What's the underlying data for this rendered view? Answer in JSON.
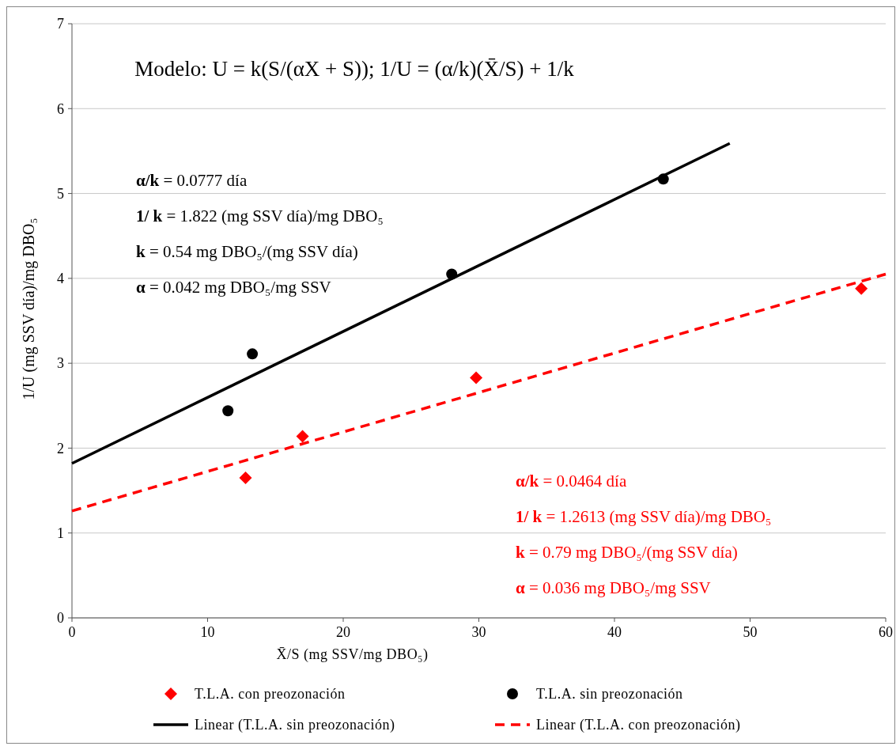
{
  "chart_data": {
    "type": "scatter",
    "xlabel": "X̄/S (mg SSV/mg DBO₅)",
    "ylabel": "1/U (mg SSV día)/mg DBO₅",
    "xlim": [
      0,
      60
    ],
    "ylim": [
      0,
      7
    ],
    "xticks": [
      0,
      10,
      20,
      30,
      40,
      50,
      60
    ],
    "yticks": [
      0,
      1,
      2,
      3,
      4,
      5,
      6,
      7
    ],
    "grid": "y",
    "legend": "bottom",
    "series": [
      {
        "name": "T.L.A. con preozonación",
        "color": "#ff0000",
        "marker": "diamond",
        "x": [
          12.8,
          17,
          29.8,
          58.2
        ],
        "values": [
          1.65,
          2.14,
          2.83,
          3.88
        ]
      },
      {
        "name": "T.L.A. sin preozonación",
        "color": "#000000",
        "marker": "circle",
        "x": [
          11.5,
          13.3,
          28,
          43.6
        ],
        "values": [
          2.44,
          3.11,
          4.05,
          5.17
        ]
      },
      {
        "name": "Linear (T.L.A. sin preozonación)",
        "type": "line",
        "color": "#000000",
        "line_style": "solid",
        "x": [
          0,
          48.5
        ],
        "values": [
          1.82,
          5.59
        ]
      },
      {
        "name": "Linear (T.L.A. con preozonación)",
        "type": "line",
        "color": "#ff0000",
        "line_style": "dashed",
        "x": [
          0,
          60
        ],
        "values": [
          1.26,
          4.05
        ]
      }
    ],
    "annotations": [
      "Modelo:   U = k(S/(αX + S));  1/U = (α/k)(X̄/S) + 1/k",
      "α/k = 0.0777 día",
      "1/ k = 1.822 (mg SSV día)/mg DBO₅",
      "k = 0.54 mg DBO₅/(mg SSV día)",
      "α = 0.042 mg DBO₅/mg SSV",
      "α/k = 0.0464 día",
      "1/ k = 1.2613 (mg SSV día)/mg DBO₅",
      "k = 0.79 mg DBO₅/(mg SSV día)",
      "α = 0.036 mg DBO₅/mg SSV"
    ]
  }
}
